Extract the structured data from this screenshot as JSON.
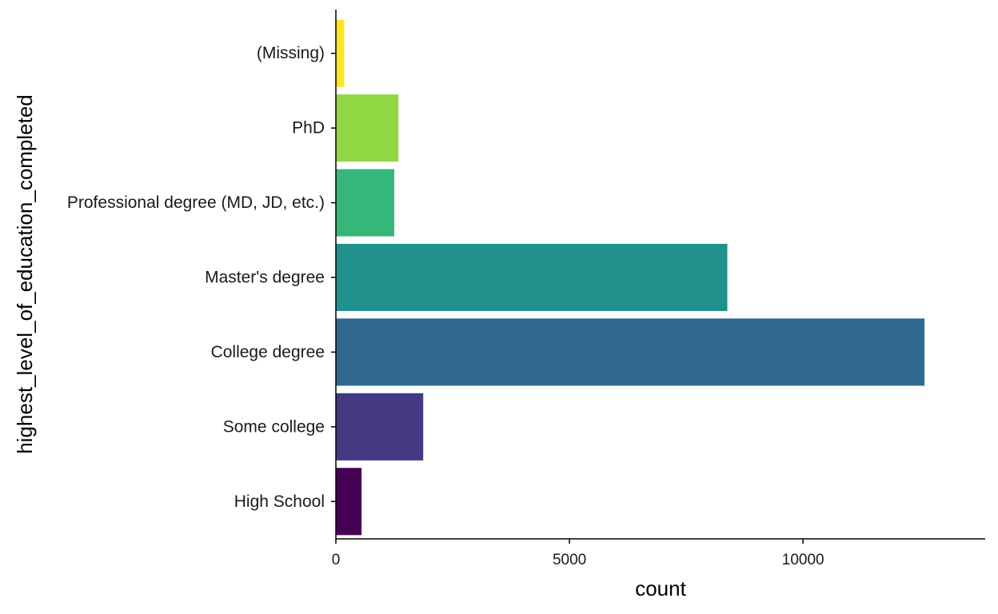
{
  "chart_data": {
    "type": "bar",
    "orientation": "horizontal",
    "title": "",
    "xlabel": "count",
    "ylabel": "highest_level_of_education_completed",
    "categories": [
      "High School",
      "Some college",
      "College degree",
      "Master's degree",
      "Professional degree (MD, JD, etc.)",
      "PhD",
      "(Missing)"
    ],
    "values": [
      550,
      1870,
      12600,
      8380,
      1250,
      1340,
      180
    ],
    "colors": [
      "#440154",
      "#443983",
      "#31688e",
      "#21918c",
      "#35b779",
      "#90d743",
      "#fde725"
    ],
    "xlim": [
      0,
      13900
    ],
    "xticks": [
      0,
      5000,
      10000
    ],
    "xtick_labels": [
      "0",
      "5000",
      "10000"
    ],
    "grid": false,
    "legend": "none"
  }
}
